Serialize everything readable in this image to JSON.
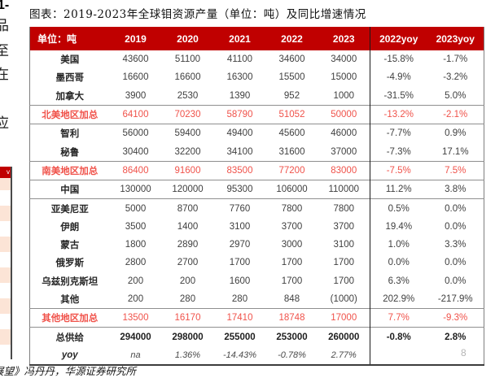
{
  "page": {
    "title": "图表：2019-2023年全球钼资源产量（单位：吨）及同比增速情况",
    "source_clipped_prefix": "展",
    "source_line": "望》冯丹丹，华源证券研究所",
    "page_number": "8"
  },
  "margin_fragments": {
    "heading": "1-",
    "chars": [
      "品",
      "至",
      "在",
      "应"
    ],
    "mini_table_header_fragment": "v"
  },
  "colors": {
    "header_bg": "#c00000",
    "accent_red": "#f0524a",
    "stripe_pink": "#fce4d6"
  },
  "table": {
    "headers": [
      "单位：吨",
      "2019",
      "2020",
      "2021",
      "2022",
      "2023",
      "2022yoy",
      "2023yoy"
    ],
    "rows": [
      {
        "label": "美国",
        "values": [
          "43600",
          "51100",
          "41100",
          "34600",
          "34000",
          "-15.8%",
          "-1.7%"
        ],
        "type": "normal",
        "topline": false
      },
      {
        "label": "墨西哥",
        "values": [
          "16600",
          "16600",
          "16300",
          "15500",
          "15000",
          "-4.9%",
          "-3.2%"
        ],
        "type": "normal",
        "topline": false
      },
      {
        "label": "加拿大",
        "values": [
          "3900",
          "2530",
          "1390",
          "952",
          "1000",
          "-31.5%",
          "5.0%"
        ],
        "type": "normal",
        "topline": false
      },
      {
        "label": "北美地区加总",
        "values": [
          "64100",
          "70230",
          "58790",
          "51052",
          "50000",
          "-13.2%",
          "-2.1%"
        ],
        "type": "subtotal",
        "topline": true
      },
      {
        "label": "智利",
        "values": [
          "56000",
          "59400",
          "49400",
          "45600",
          "46000",
          "-7.7%",
          "0.9%"
        ],
        "type": "normal",
        "topline": true
      },
      {
        "label": "秘鲁",
        "values": [
          "30400",
          "32200",
          "34100",
          "31600",
          "37000",
          "-7.3%",
          "17.1%"
        ],
        "type": "normal",
        "topline": false
      },
      {
        "label": "南美地区加总",
        "values": [
          "86400",
          "91600",
          "83500",
          "77200",
          "83000",
          "-7.5%",
          "7.5%"
        ],
        "type": "subtotal",
        "topline": true
      },
      {
        "label": "中国",
        "values": [
          "130000",
          "120000",
          "95300",
          "106000",
          "110000",
          "11.2%",
          "3.8%"
        ],
        "type": "normal",
        "topline": true
      },
      {
        "label": "亚美尼亚",
        "values": [
          "5000",
          "8700",
          "7760",
          "7800",
          "7800",
          "0.5%",
          "0.0%"
        ],
        "type": "normal",
        "topline": true
      },
      {
        "label": "伊朗",
        "values": [
          "3500",
          "1400",
          "3100",
          "3700",
          "3700",
          "19.4%",
          "0.0%"
        ],
        "type": "normal",
        "topline": false
      },
      {
        "label": "蒙古",
        "values": [
          "1800",
          "2890",
          "2970",
          "3000",
          "3100",
          "1.0%",
          "3.3%"
        ],
        "type": "normal",
        "topline": false
      },
      {
        "label": "俄罗斯",
        "values": [
          "2800",
          "2700",
          "1700",
          "1700",
          "1700",
          "0.0%",
          "0.0%"
        ],
        "type": "normal",
        "topline": false
      },
      {
        "label": "乌兹别克斯坦",
        "values": [
          "200",
          "200",
          "1600",
          "1700",
          "1700",
          "6.3%",
          "0.0%"
        ],
        "type": "normal",
        "topline": false
      },
      {
        "label": "其他",
        "values": [
          "200",
          "280",
          "280",
          "848",
          "(1000)",
          "202.9%",
          "-217.9%"
        ],
        "type": "normal",
        "topline": false,
        "red_cols": [
          4
        ]
      },
      {
        "label": "其他地区加总",
        "values": [
          "13500",
          "16170",
          "17410",
          "18748",
          "17000",
          "7.7%",
          "-9.3%"
        ],
        "type": "subtotal",
        "topline": true
      },
      {
        "label": "总供给",
        "values": [
          "294000",
          "298000",
          "255000",
          "253000",
          "260000",
          "-0.8%",
          "2.8%"
        ],
        "type": "total",
        "topline": true
      },
      {
        "label": "yoy",
        "values": [
          "na",
          "1.36%",
          "-14.43%",
          "-0.78%",
          "2.77%",
          "",
          ""
        ],
        "type": "yoy",
        "topline": false
      }
    ]
  }
}
